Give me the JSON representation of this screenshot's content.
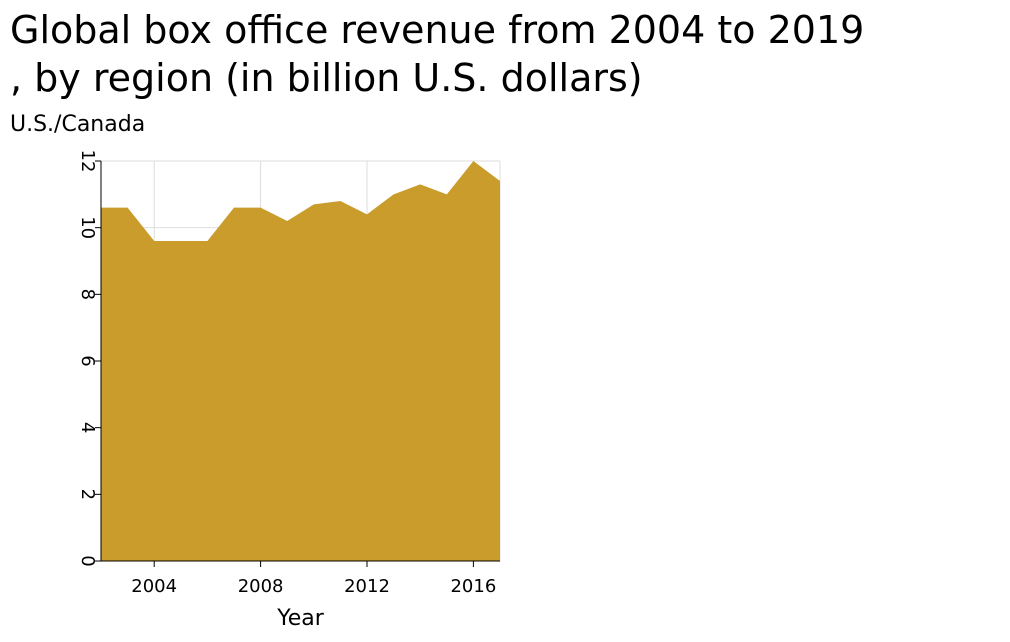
{
  "chart_data": {
    "type": "area",
    "title": "Global box office revenue from 2004 to 2019 , by region (in billion U.S. dollars)",
    "title_lines": [
      "Global box office revenue from 2004 to 2019",
      ", by region (in billion U.S. dollars)"
    ],
    "xlabel": "Year",
    "ylabel": "U.S./Canada",
    "x_ticks": [
      "2004",
      "2008",
      "2012",
      "2016"
    ],
    "y_ticks": [
      "0",
      "2",
      "4",
      "6",
      "8",
      "10",
      "12"
    ],
    "xlim": [
      2002,
      2017
    ],
    "ylim": [
      0,
      12
    ],
    "grid": true,
    "legend": "none",
    "fill_color": "#c99c2c",
    "grid_color": "#dddddd",
    "series": [
      {
        "x": [
          2002,
          2003,
          2004,
          2005,
          2006,
          2007,
          2008,
          2009,
          2010,
          2011,
          2012,
          2013,
          2014,
          2015,
          2016,
          2017
        ],
        "values": [
          10.6,
          10.6,
          9.6,
          9.6,
          9.6,
          10.6,
          10.6,
          10.2,
          10.7,
          10.8,
          10.4,
          11.0,
          11.3,
          11.0,
          12.0,
          11.4
        ]
      }
    ]
  }
}
